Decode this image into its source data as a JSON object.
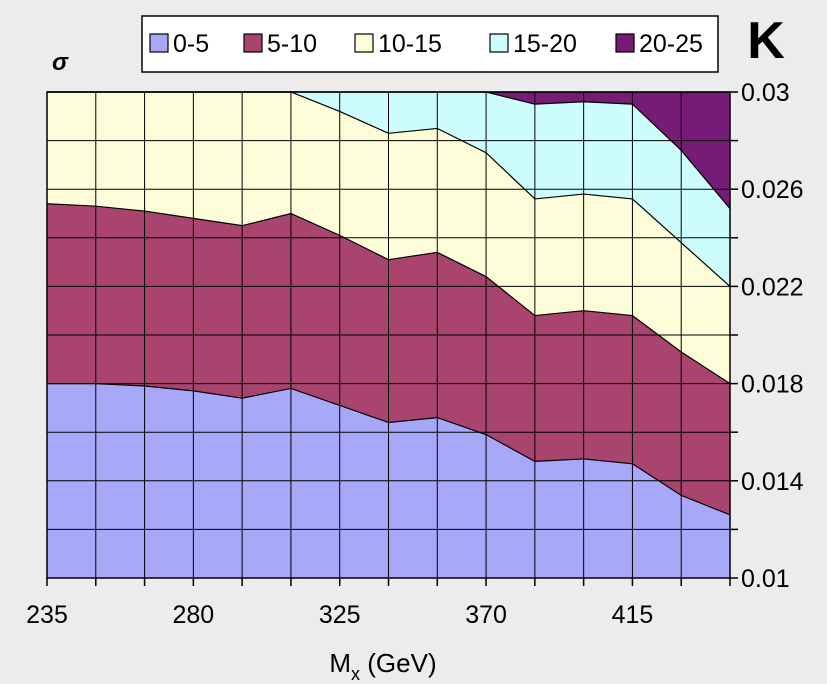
{
  "corner_label": "K",
  "chart_data": {
    "type": "area",
    "title": "",
    "xlabel": "Mx (GeV)",
    "xlabel_main": "M",
    "xlabel_sub": "x",
    "xlabel_unit": " (GeV)",
    "ylabel": "σ",
    "xlim": [
      235,
      445
    ],
    "ylim": [
      0.01,
      0.03
    ],
    "x_tick_labels": [
      "235",
      "280",
      "325",
      "370",
      "415"
    ],
    "x_tick_values": [
      235,
      280,
      325,
      370,
      415
    ],
    "y_tick_labels": [
      "0.01",
      "0.014",
      "0.018",
      "0.022",
      "0.026",
      "0.03"
    ],
    "y_tick_values": [
      0.01,
      0.014,
      0.018,
      0.022,
      0.026,
      0.03
    ],
    "grid": true,
    "legend_position": "top",
    "x": [
      235,
      250,
      265,
      280,
      295,
      310,
      325,
      340,
      355,
      370,
      385,
      400,
      415,
      430,
      445
    ],
    "series": [
      {
        "name": "0-5",
        "color": "#a8a8f8",
        "upper_boundary": [
          0.018,
          0.018,
          0.0179,
          0.0177,
          0.0174,
          0.0178,
          0.0171,
          0.0164,
          0.0166,
          0.0159,
          0.0148,
          0.0149,
          0.0147,
          0.0134,
          0.0126
        ]
      },
      {
        "name": "5-10",
        "color": "#a8446e",
        "upper_boundary": [
          0.0254,
          0.0253,
          0.0251,
          0.0248,
          0.0245,
          0.025,
          0.0241,
          0.0231,
          0.0234,
          0.0224,
          0.0208,
          0.021,
          0.0208,
          0.0193,
          0.018
        ]
      },
      {
        "name": "10-15",
        "color": "#fcfcd8",
        "upper_boundary": [
          0.03,
          0.03,
          0.03,
          0.03,
          0.03,
          0.03,
          0.0292,
          0.0283,
          0.0285,
          0.0275,
          0.0256,
          0.0258,
          0.0256,
          0.0238,
          0.022
        ]
      },
      {
        "name": "15-20",
        "color": "#ccfcfc",
        "upper_boundary": [
          0.03,
          0.03,
          0.03,
          0.03,
          0.03,
          0.03,
          0.03,
          0.03,
          0.03,
          0.03,
          0.0295,
          0.0296,
          0.0295,
          0.0276,
          0.0252
        ]
      },
      {
        "name": "20-25",
        "color": "#761c76",
        "upper_boundary": [
          0.03,
          0.03,
          0.03,
          0.03,
          0.03,
          0.03,
          0.03,
          0.03,
          0.03,
          0.03,
          0.03,
          0.03,
          0.03,
          0.03,
          0.03
        ]
      }
    ]
  }
}
